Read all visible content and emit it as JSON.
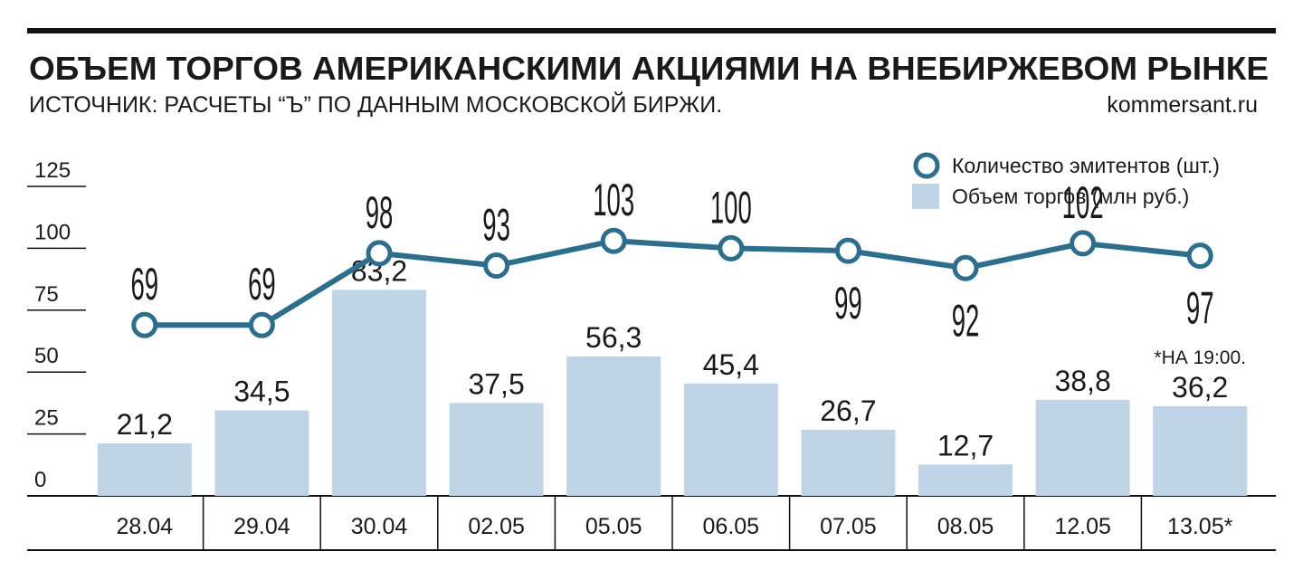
{
  "chart_data": {
    "type": "bar",
    "title": "ОБЪЕМ ТОРГОВ АМЕРИКАНСКИМИ АКЦИЯМИ НА ВНЕБИРЖЕВОМ РЫНКЕ",
    "subtitle": "ИСТОЧНИК: РАСЧЕТЫ “Ъ” ПО ДАННЫМ МОСКОВСКОЙ БИРЖИ.",
    "source": "kommersant.ru",
    "annotation": "*НА 19:00.",
    "categories": [
      "28.04",
      "29.04",
      "30.04",
      "02.05",
      "05.05",
      "06.05",
      "07.05",
      "08.05",
      "12.05",
      "13.05*"
    ],
    "series": [
      {
        "name": "Количество эмитентов (шт.)",
        "type": "line",
        "color": "#2d6e8c",
        "values": [
          69,
          69,
          98,
          93,
          103,
          100,
          99,
          92,
          102,
          97
        ]
      },
      {
        "name": "Объем торгов (млн руб.)",
        "type": "bar",
        "color": "#bfd4e6",
        "values": [
          21.2,
          34.5,
          83.2,
          37.5,
          56.3,
          45.4,
          26.7,
          12.7,
          38.8,
          36.2
        ],
        "value_labels": [
          "21,2",
          "34,5",
          "83,2",
          "37,5",
          "56,3",
          "45,4",
          "26,7",
          "12,7",
          "38,8",
          "36,2"
        ]
      }
    ],
    "ylim": [
      0,
      125
    ],
    "yticks": [
      0,
      25,
      50,
      75,
      100,
      125
    ],
    "legend": "top-right"
  }
}
